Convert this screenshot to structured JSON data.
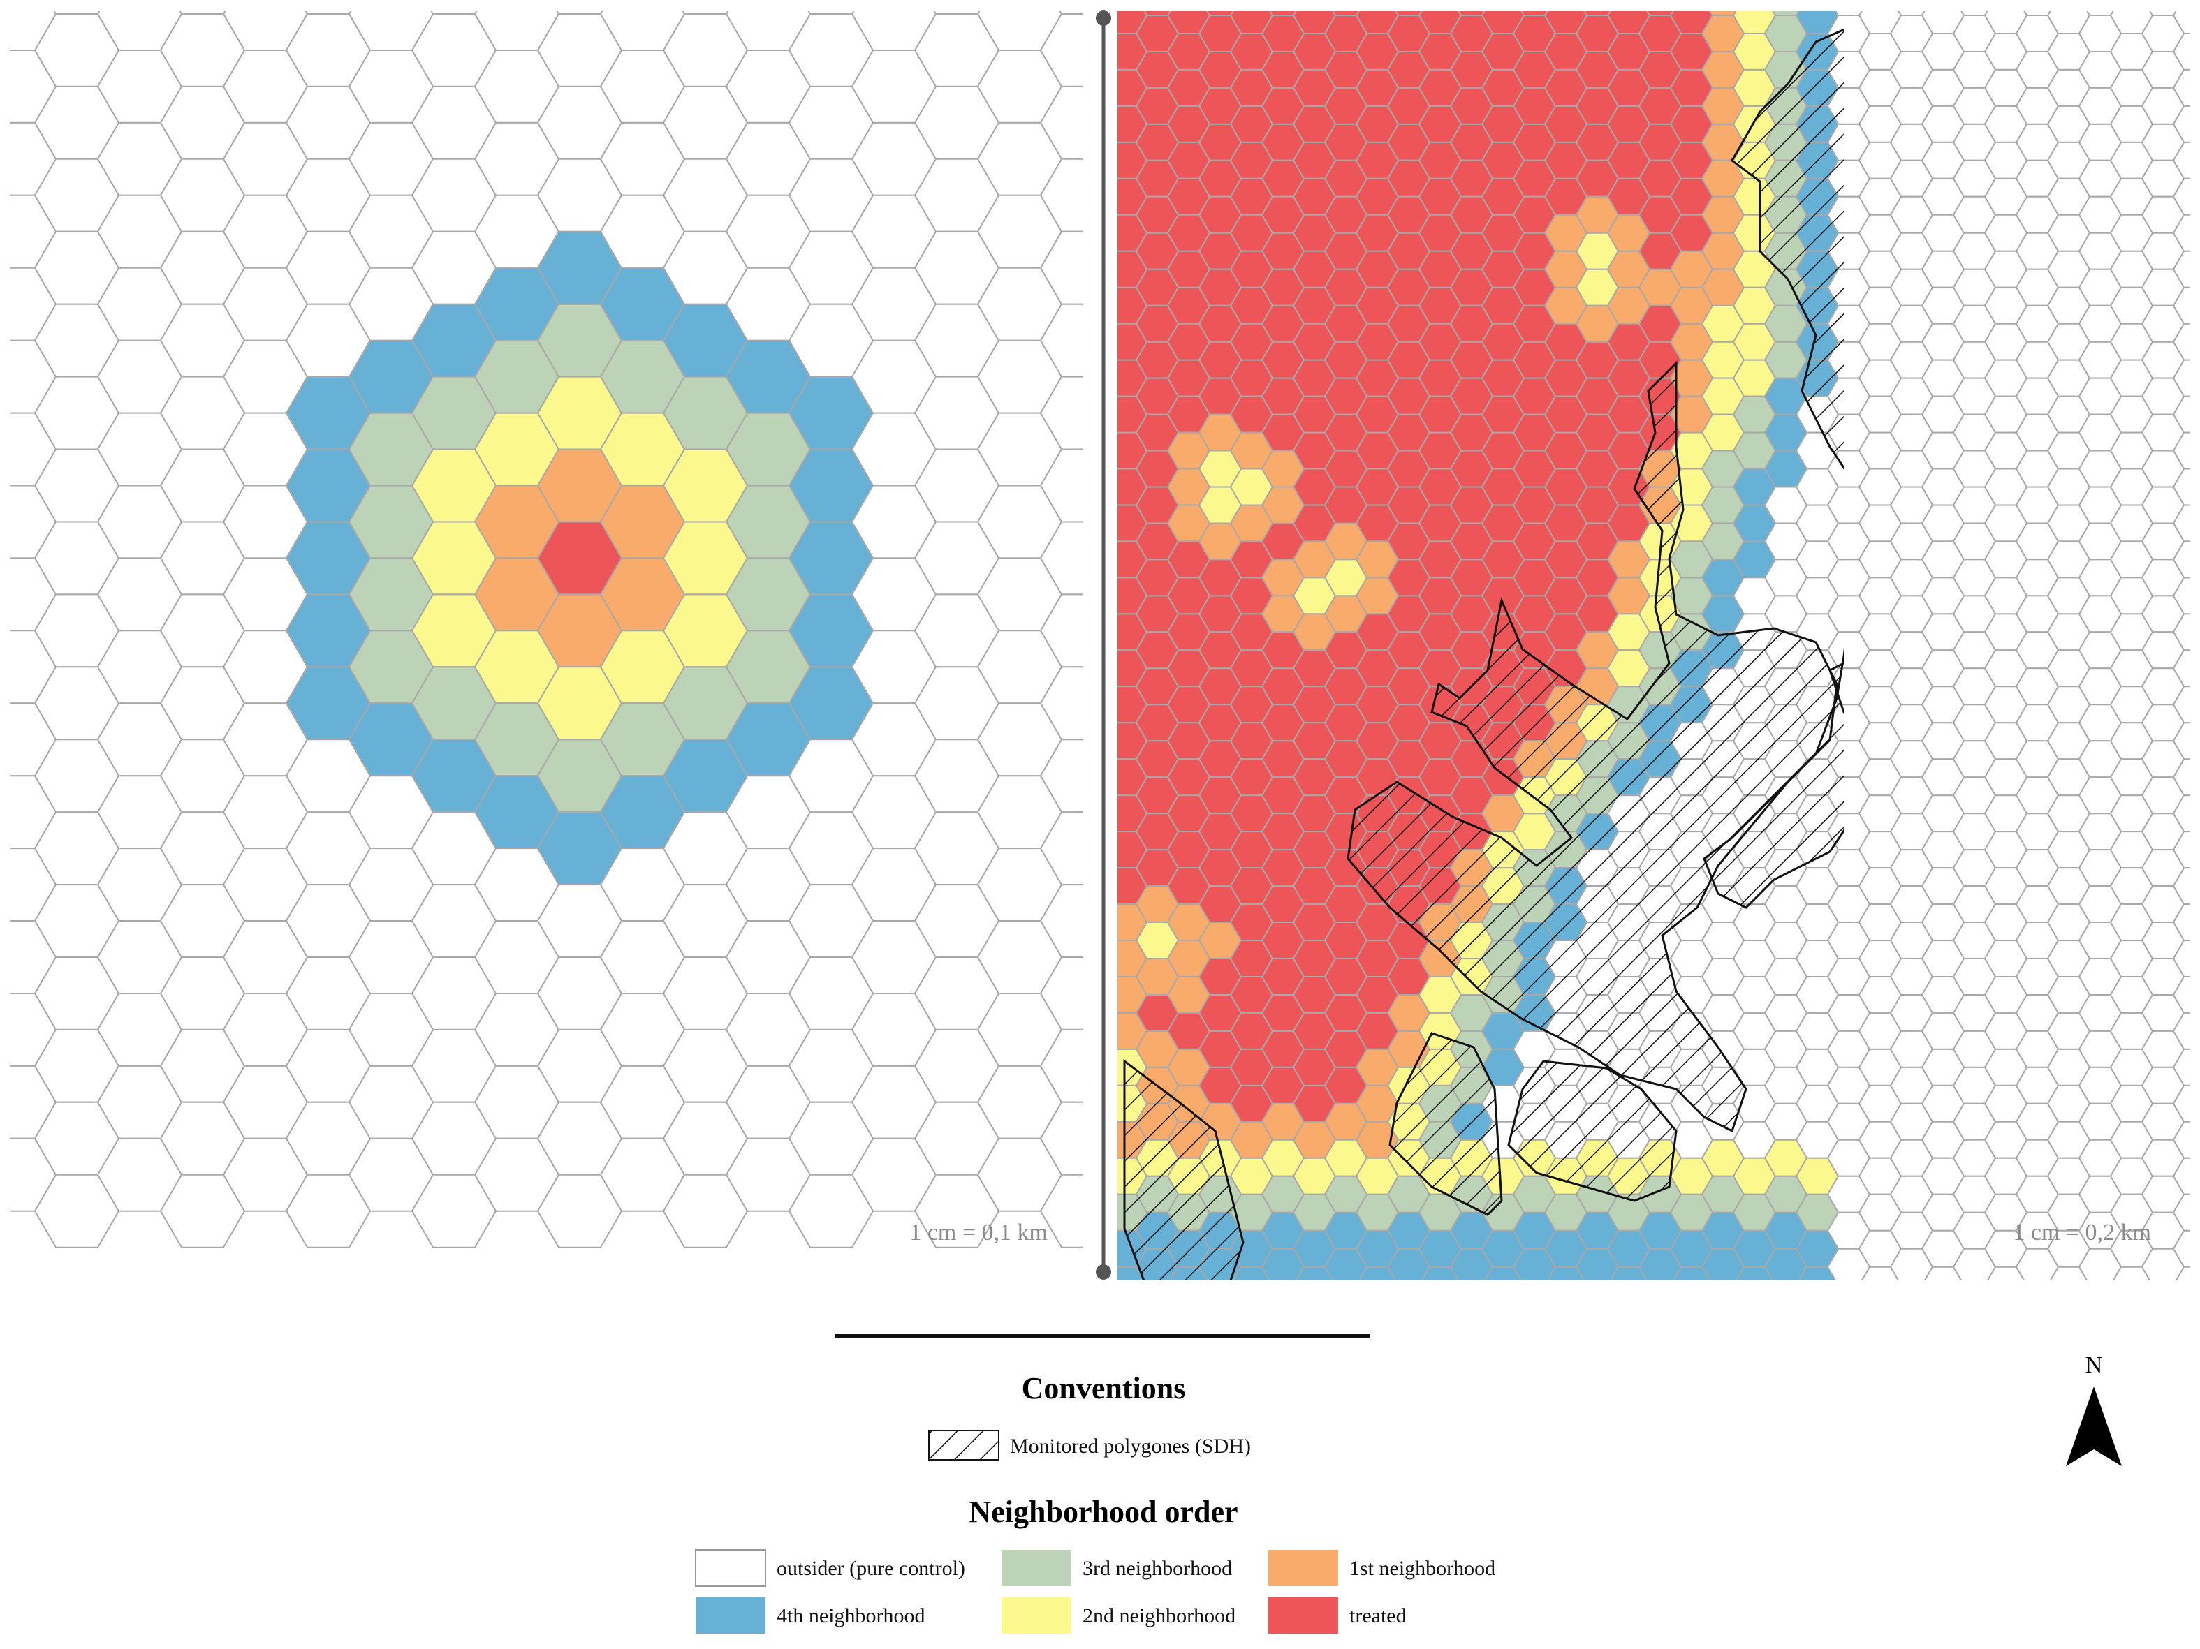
{
  "left_panel": {
    "scale": "1 cm = 0,1 km",
    "ring_order": [
      "treated",
      "1st neighborhood",
      "2nd neighborhood",
      "3rd neighborhood",
      "4th neighborhood"
    ]
  },
  "right_panel": {
    "scale": "1 cm = 0,2 km"
  },
  "legend": {
    "conventions_title": "Conventions",
    "monitored_label": "Monitored polygones (SDH)",
    "neighborhood_title": "Neighborhood order",
    "items": [
      {
        "key": "outsider",
        "label": "outsider (pure control)",
        "color": "#ffffff"
      },
      {
        "key": "n3",
        "label": "3rd neighborhood",
        "color": "#bdd3b7"
      },
      {
        "key": "n1",
        "label": "1st neighborhood",
        "color": "#f9ab6c"
      },
      {
        "key": "n4",
        "label": "4th neighborhood",
        "color": "#68b1d6"
      },
      {
        "key": "n2",
        "label": "2nd neighborhood",
        "color": "#fbf98e"
      },
      {
        "key": "treated",
        "label": "treated",
        "color": "#ed5559"
      }
    ]
  },
  "north_arrow": {
    "label": "N"
  },
  "colors": {
    "treated": "#ed5559",
    "n1": "#f9ab6c",
    "n2": "#fbf98e",
    "n3": "#bdd3b7",
    "n4": "#68b1d6",
    "outsider": "#ffffff",
    "grid_line": "#a8a8a8"
  }
}
